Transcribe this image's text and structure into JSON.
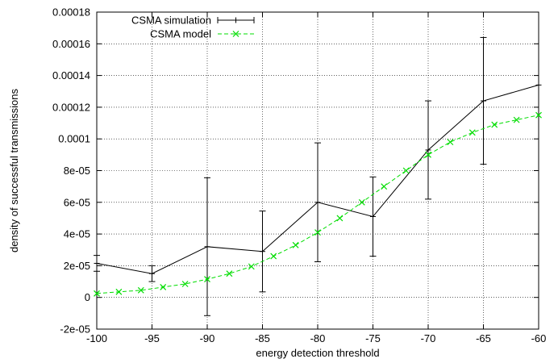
{
  "chart_data": {
    "type": "line",
    "title": "",
    "xlabel": "energy detection threshold",
    "ylabel": "density of successful transmissions",
    "xlim": [
      -100,
      -60
    ],
    "ylim": [
      -2e-05,
      0.00018
    ],
    "grid": true,
    "legend_position": "top-left",
    "x_ticks": [
      "-100",
      "-95",
      "-90",
      "-85",
      "-80",
      "-75",
      "-70",
      "-65",
      "-60"
    ],
    "y_ticks": [
      "-2e-05",
      "0",
      "2e-05",
      "4e-05",
      "6e-05",
      "8e-05",
      "0.0001",
      "0.00012",
      "0.00014",
      "0.00016",
      "0.00018"
    ],
    "series": [
      {
        "name": "CSMA simulation",
        "color": "#000000",
        "marker": "plus",
        "error_bars": true,
        "points": [
          {
            "x": -100,
            "y": 2.15e-05,
            "lo": 1.65e-05,
            "hi": 2.65e-05
          },
          {
            "x": -95,
            "y": 1.5e-05,
            "lo": 1e-05,
            "hi": 2e-05
          },
          {
            "x": -90,
            "y": 3.2e-05,
            "lo": -1.15e-05,
            "hi": 7.55e-05
          },
          {
            "x": -85,
            "y": 2.9e-05,
            "lo": 3.5e-06,
            "hi": 5.45e-05
          },
          {
            "x": -80,
            "y": 6e-05,
            "lo": 2.25e-05,
            "hi": 9.75e-05
          },
          {
            "x": -75,
            "y": 5.1e-05,
            "lo": 2.6e-05,
            "hi": 7.6e-05
          },
          {
            "x": -70,
            "y": 9.3e-05,
            "lo": 6.2e-05,
            "hi": 0.000124
          },
          {
            "x": -65,
            "y": 0.000124,
            "lo": 8.4e-05,
            "hi": 0.000164
          },
          {
            "x": -60,
            "y": 0.000134,
            "lo": 0.000134,
            "hi": 0.000134
          }
        ]
      },
      {
        "name": "CSMA model",
        "color": "#00dd00",
        "marker": "x",
        "points": [
          {
            "x": -100,
            "y": 2.5e-06
          },
          {
            "x": -98,
            "y": 3.5e-06
          },
          {
            "x": -96,
            "y": 4.5e-06
          },
          {
            "x": -94,
            "y": 6.5e-06
          },
          {
            "x": -92,
            "y": 8.5e-06
          },
          {
            "x": -90,
            "y": 1.15e-05
          },
          {
            "x": -88,
            "y": 1.5e-05
          },
          {
            "x": -86,
            "y": 1.95e-05
          },
          {
            "x": -84,
            "y": 2.6e-05
          },
          {
            "x": -82,
            "y": 3.3e-05
          },
          {
            "x": -80,
            "y": 4.1e-05
          },
          {
            "x": -78,
            "y": 5e-05
          },
          {
            "x": -76,
            "y": 6e-05
          },
          {
            "x": -74,
            "y": 7e-05
          },
          {
            "x": -72,
            "y": 8e-05
          },
          {
            "x": -70,
            "y": 9e-05
          },
          {
            "x": -68,
            "y": 9.8e-05
          },
          {
            "x": -66,
            "y": 0.000104
          },
          {
            "x": -64,
            "y": 0.000109
          },
          {
            "x": -62,
            "y": 0.000112
          },
          {
            "x": -60,
            "y": 0.000115
          }
        ]
      }
    ]
  }
}
